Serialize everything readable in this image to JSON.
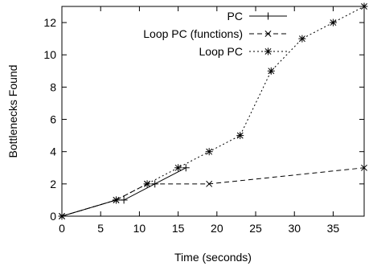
{
  "chart_data": {
    "type": "line",
    "title": "",
    "xlabel": "Time (seconds)",
    "ylabel": "Bottlenecks Found",
    "xlim": [
      0,
      39
    ],
    "ylim": [
      0,
      13
    ],
    "x_ticks": [
      0,
      5,
      10,
      15,
      20,
      25,
      30,
      35
    ],
    "y_ticks": [
      0,
      2,
      4,
      6,
      8,
      10,
      12
    ],
    "grid": false,
    "legend_position": "top-left",
    "series": [
      {
        "name": "PC",
        "line_style": "solid",
        "marker": "plus",
        "color": "#000000",
        "points": [
          [
            0,
            0
          ],
          [
            7,
            1
          ],
          [
            8,
            1
          ],
          [
            12,
            2
          ],
          [
            16,
            3
          ]
        ]
      },
      {
        "name": "Loop PC (functions)",
        "line_style": "dashed",
        "marker": "cross",
        "color": "#000000",
        "points": [
          [
            0,
            0
          ],
          [
            7,
            1
          ],
          [
            11,
            2
          ],
          [
            19,
            2
          ],
          [
            39,
            3
          ]
        ]
      },
      {
        "name": "Loop PC",
        "line_style": "dotted",
        "marker": "star",
        "color": "#000000",
        "points": [
          [
            0,
            0
          ],
          [
            7,
            1
          ],
          [
            11,
            2
          ],
          [
            15,
            3
          ],
          [
            19,
            4
          ],
          [
            23,
            5
          ],
          [
            27,
            9
          ],
          [
            31,
            11
          ],
          [
            35,
            12
          ],
          [
            39,
            13
          ]
        ]
      }
    ]
  }
}
